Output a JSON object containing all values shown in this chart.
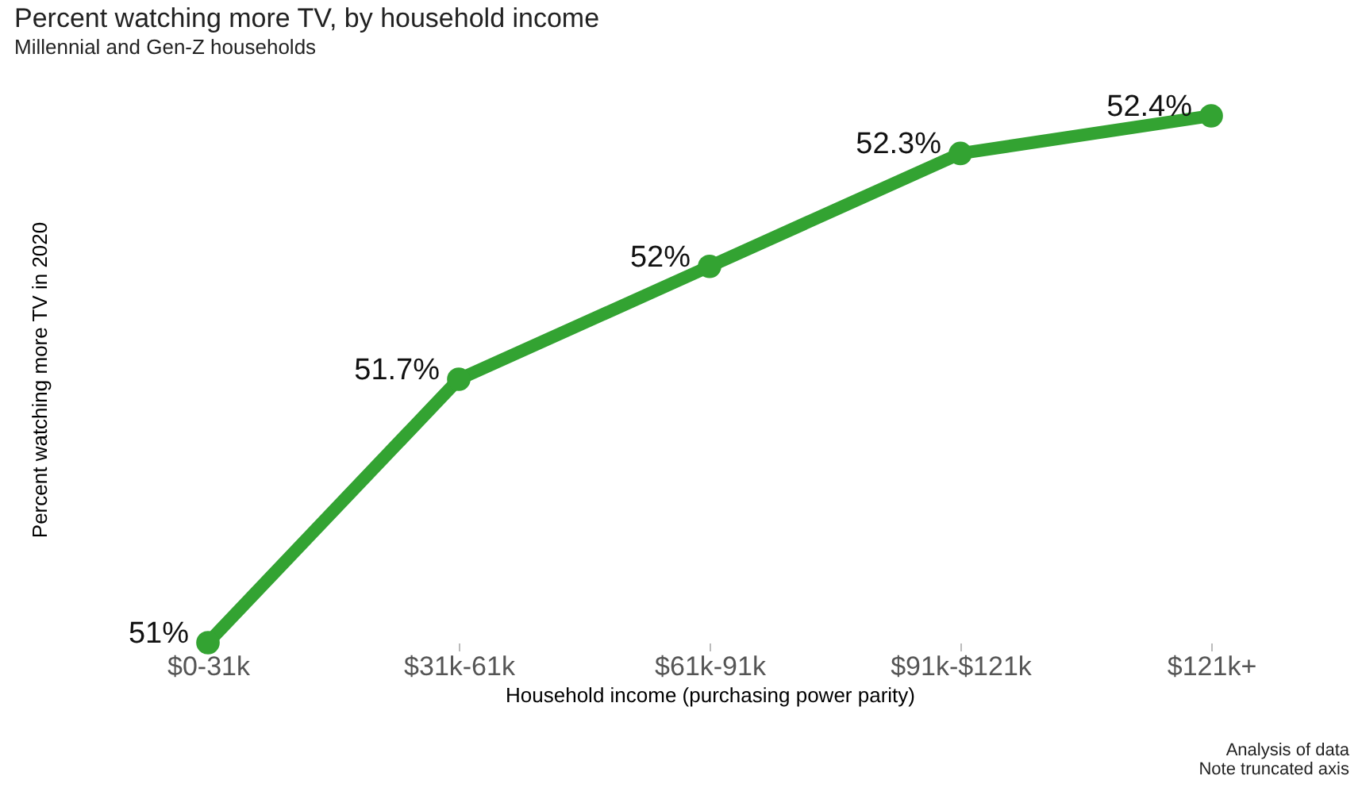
{
  "chart_data": {
    "type": "line",
    "title": "Percent watching more TV, by household income",
    "subtitle": "Millennial and Gen-Z households",
    "xlabel": "Household income (purchasing power parity)",
    "ylabel": "Percent watching more TV in 2020",
    "categories": [
      "$0-31k",
      "$31k-61k",
      "$61k-91k",
      "$91k-$121k",
      "$121k+"
    ],
    "series": [
      {
        "color": "#33a332",
        "values": [
          51,
          51.7,
          52,
          52.3,
          52.4
        ],
        "value_labels": [
          "51%",
          "51.7%",
          "52%",
          "52.3%",
          "52.4%"
        ]
      }
    ],
    "annotations": [
      "Analysis of data",
      "Note truncated axis"
    ],
    "marker": "circle",
    "line_style": "solid",
    "grid": false,
    "tick_labels": "x"
  }
}
